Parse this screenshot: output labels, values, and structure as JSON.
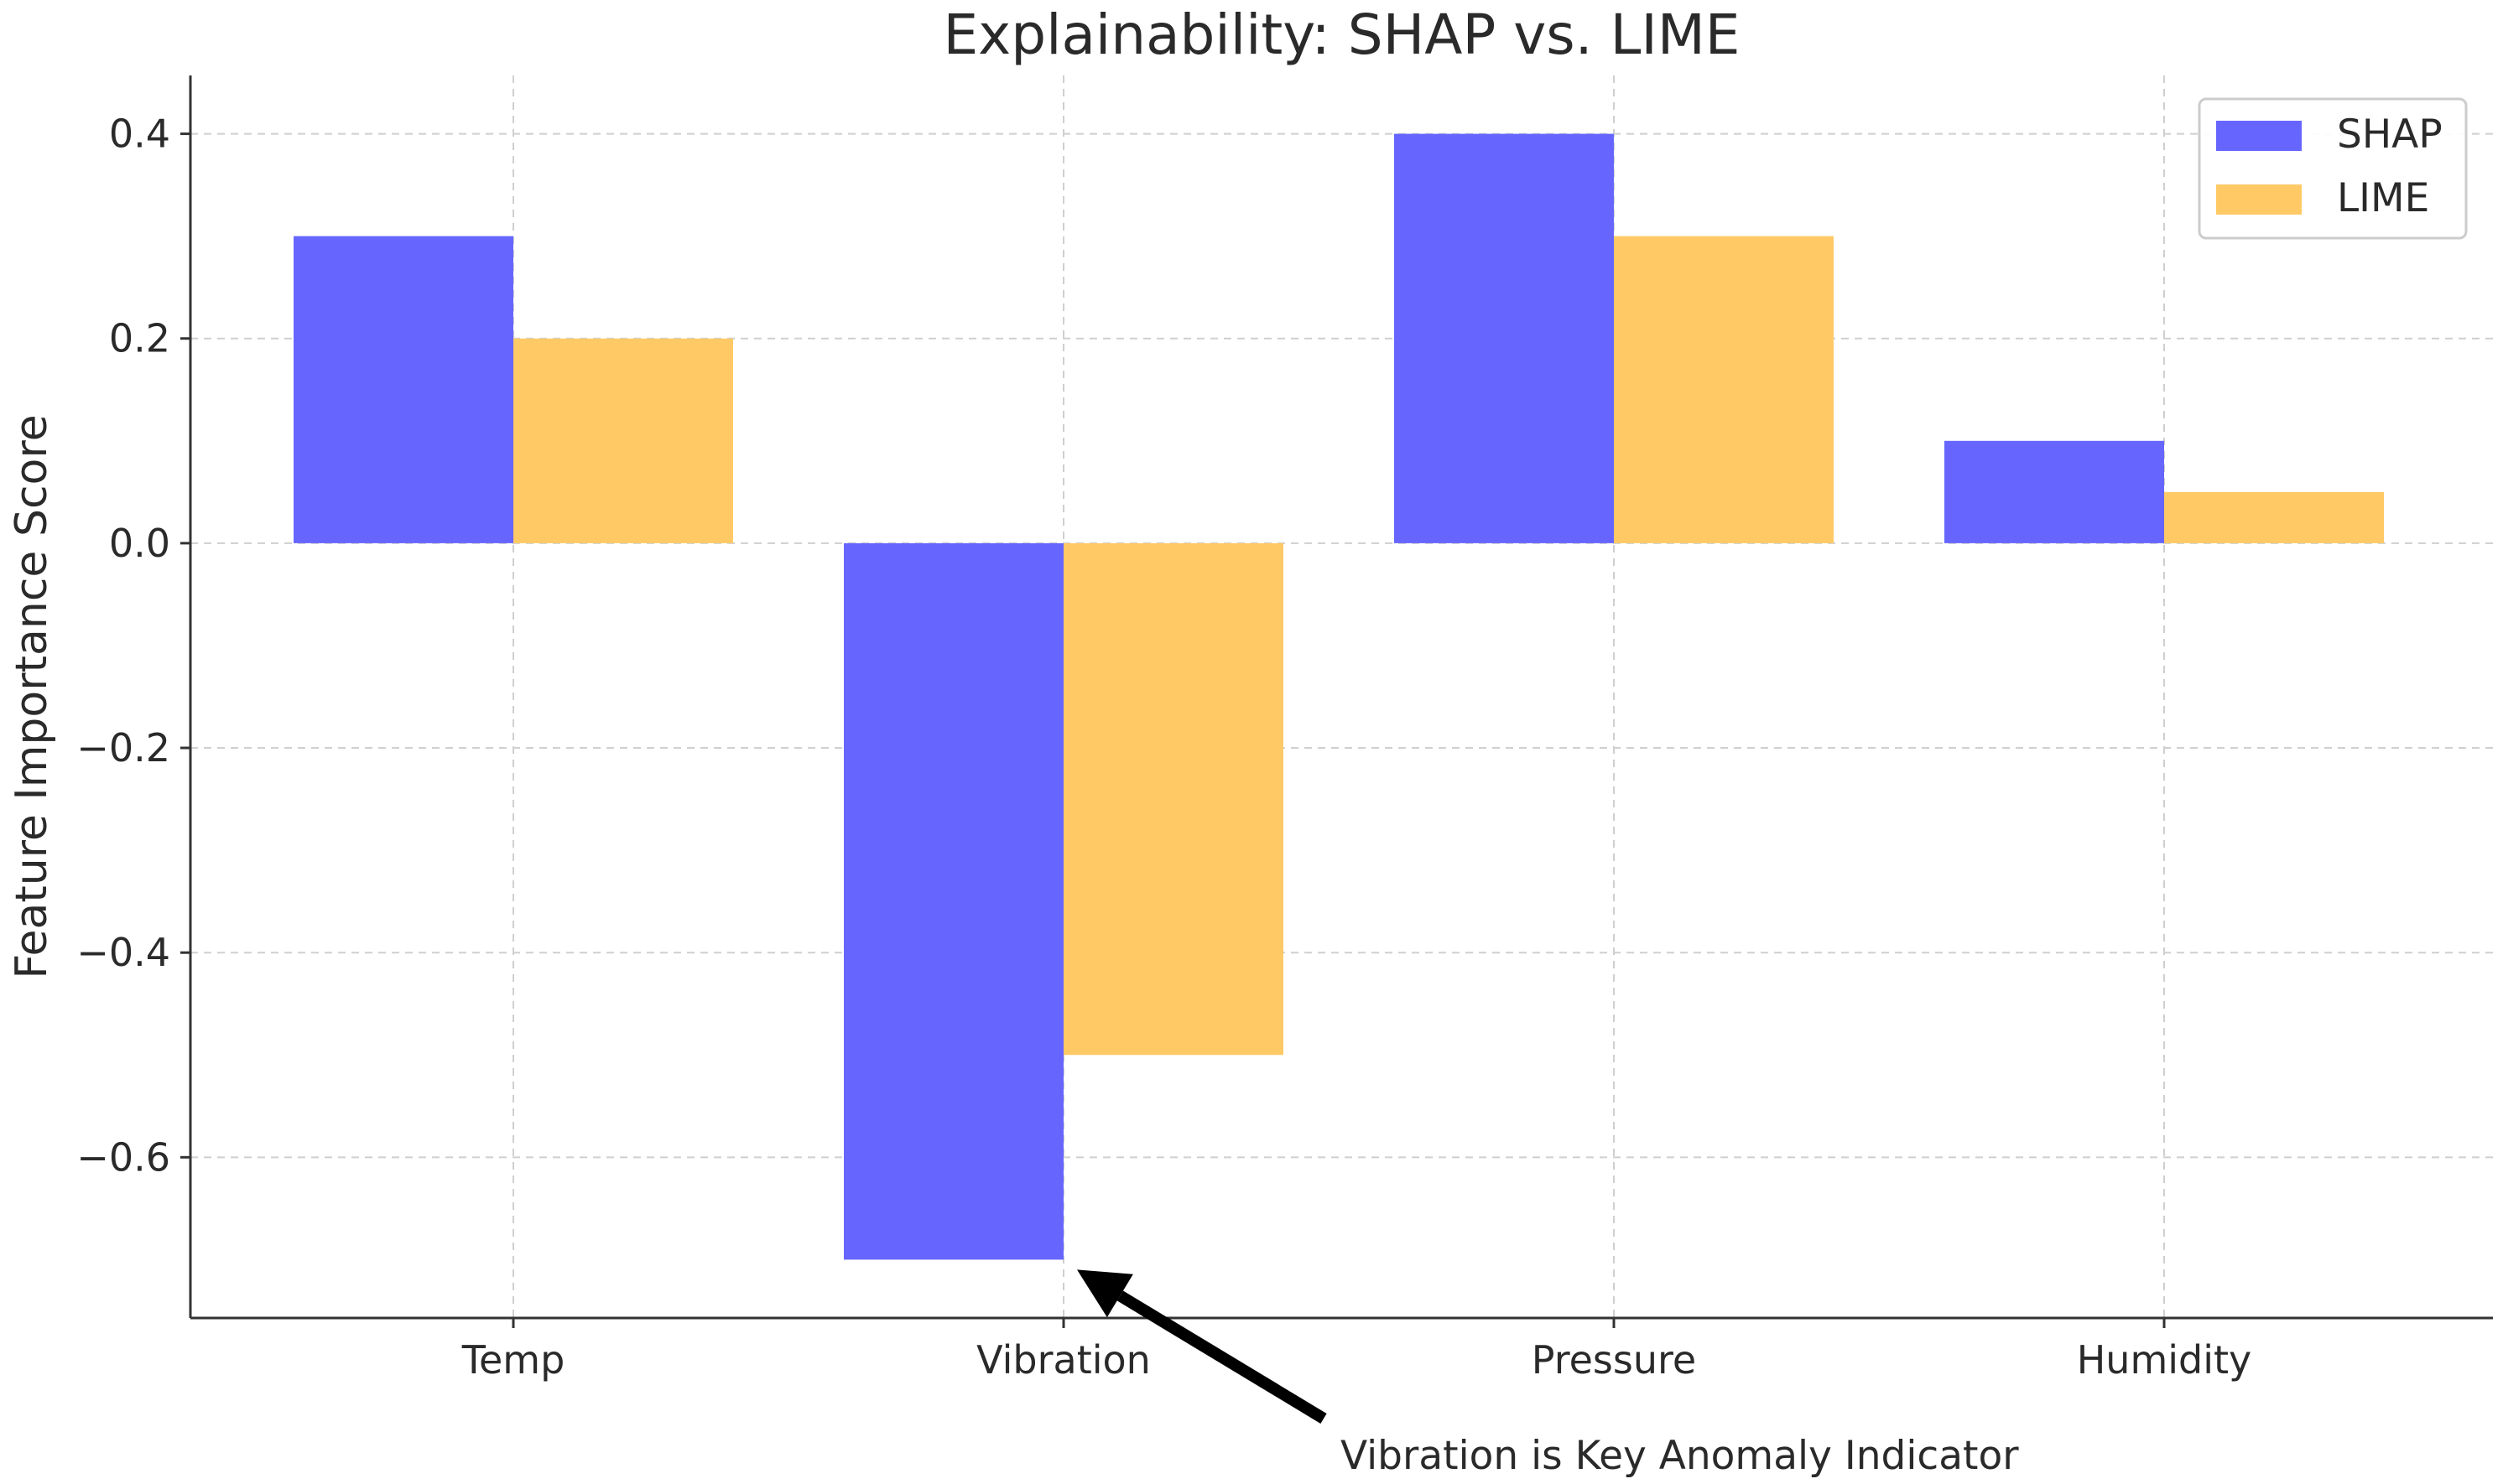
{
  "chart_data": {
    "type": "bar",
    "title": "Explainability: SHAP vs. LIME",
    "xlabel": "",
    "ylabel": "Feature Importance Score",
    "categories": [
      "Temp",
      "Vibration",
      "Pressure",
      "Humidity"
    ],
    "series": [
      {
        "name": "SHAP",
        "color": "#6666ff",
        "values": [
          0.3,
          -0.7,
          0.4,
          0.1
        ]
      },
      {
        "name": "LIME",
        "color": "#ffc966",
        "values": [
          0.2,
          -0.5,
          0.3,
          0.05
        ]
      }
    ],
    "ylim": [
      -0.757,
      0.457
    ],
    "yticks": [
      0.4,
      0.2,
      0.0,
      -0.2,
      -0.4,
      -0.6
    ],
    "ytick_labels": [
      "0.4",
      "0.2",
      "0.0",
      "−0.2",
      "−0.4",
      "−0.6"
    ],
    "grid": true,
    "legend_position": "top-right",
    "annotation": {
      "text": "Vibration is Key Anomaly Indicator",
      "points_to_category": "Vibration",
      "points_to_series": "SHAP",
      "points_to_value": -0.7
    }
  }
}
